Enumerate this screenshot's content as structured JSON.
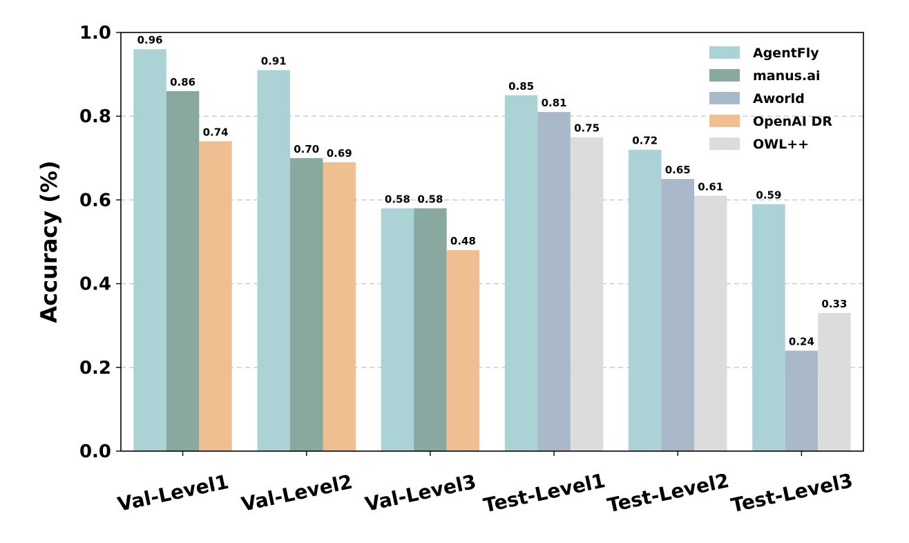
{
  "chart_data": {
    "type": "bar",
    "ylabel": "Accuracy (%)",
    "ylim": [
      0,
      1.0
    ],
    "yticks": [
      "0.0",
      "0.2",
      "0.4",
      "0.6",
      "0.8",
      "1.0"
    ],
    "grid": "horizontal-dashed",
    "legend_position": "top-right",
    "categories": [
      "Val-Level1",
      "Val-Level2",
      "Val-Level3",
      "Test-Level1",
      "Test-Level2",
      "Test-Level3"
    ],
    "legend": [
      {
        "name": "AgentFly",
        "color": "#abd3d5"
      },
      {
        "name": "manus.ai",
        "color": "#89a89f"
      },
      {
        "name": "Aworld",
        "color": "#a9b9c9"
      },
      {
        "name": "OpenAI DR",
        "color": "#efbf92"
      },
      {
        "name": "OWL++",
        "color": "#dcdcdc"
      }
    ],
    "groups": [
      {
        "category": "Val-Level1",
        "bars": [
          {
            "series": "AgentFly",
            "value": 0.96,
            "label": "0.96"
          },
          {
            "series": "manus.ai",
            "value": 0.86,
            "label": "0.86"
          },
          {
            "series": "OpenAI DR",
            "value": 0.74,
            "label": "0.74"
          }
        ]
      },
      {
        "category": "Val-Level2",
        "bars": [
          {
            "series": "AgentFly",
            "value": 0.91,
            "label": "0.91"
          },
          {
            "series": "manus.ai",
            "value": 0.7,
            "label": "0.70"
          },
          {
            "series": "OpenAI DR",
            "value": 0.69,
            "label": "0.69"
          }
        ]
      },
      {
        "category": "Val-Level3",
        "bars": [
          {
            "series": "AgentFly",
            "value": 0.58,
            "label": "0.58"
          },
          {
            "series": "manus.ai",
            "value": 0.58,
            "label": "0.58"
          },
          {
            "series": "OpenAI DR",
            "value": 0.48,
            "label": "0.48"
          }
        ]
      },
      {
        "category": "Test-Level1",
        "bars": [
          {
            "series": "AgentFly",
            "value": 0.85,
            "label": "0.85"
          },
          {
            "series": "Aworld",
            "value": 0.81,
            "label": "0.81"
          },
          {
            "series": "OWL++",
            "value": 0.75,
            "label": "0.75"
          }
        ]
      },
      {
        "category": "Test-Level2",
        "bars": [
          {
            "series": "AgentFly",
            "value": 0.72,
            "label": "0.72"
          },
          {
            "series": "Aworld",
            "value": 0.65,
            "label": "0.65"
          },
          {
            "series": "OWL++",
            "value": 0.61,
            "label": "0.61"
          }
        ]
      },
      {
        "category": "Test-Level3",
        "bars": [
          {
            "series": "AgentFly",
            "value": 0.59,
            "label": "0.59"
          },
          {
            "series": "Aworld",
            "value": 0.24,
            "label": "0.24"
          },
          {
            "series": "OWL++",
            "value": 0.33,
            "label": "0.33"
          }
        ]
      }
    ]
  }
}
